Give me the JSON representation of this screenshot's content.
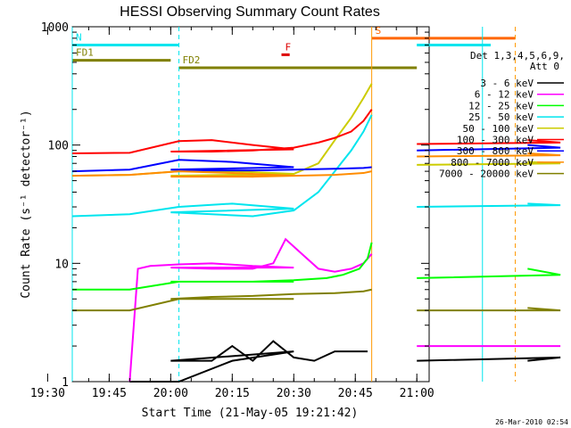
{
  "chart_data": {
    "type": "line",
    "title": "HESSI Observing Summary Count Rates",
    "xlabel": "Start Time (21-May-05 19:21:42)",
    "ylabel": "Count Rate (s⁻¹ detector⁻¹)",
    "yscale": "log",
    "ylim": [
      1,
      1000
    ],
    "xlim_minutes": [
      19.36,
      21.033
    ],
    "x_ticks": [
      "19:30",
      "19:45",
      "20:00",
      "20:15",
      "20:30",
      "20:45",
      "21:00"
    ],
    "y_ticks": [
      "1",
      "10",
      "100",
      "1000"
    ],
    "detector_note": "Det 1,3,4,5,6,9,",
    "attenuator_note": "Att 0",
    "timestamp": "26-Mar-2010 02:54",
    "legend_position": "right",
    "flags": [
      {
        "label": "N",
        "color": "#00e5ee",
        "y": 700,
        "segments": [
          [
            19.36,
            19.62
          ],
          [
            20.78,
            21.0
          ]
        ]
      },
      {
        "label": "S",
        "color": "#ff6600",
        "y": 800,
        "segments": [
          [
            20.49,
            20.84
          ]
        ]
      },
      {
        "label": "FD1",
        "color": "#808000",
        "y": 520,
        "segments": [
          [
            19.36,
            19.6
          ]
        ]
      },
      {
        "label": "FD2",
        "color": "#808000",
        "y": 450,
        "segments": [
          [
            19.62,
            21.0
          ]
        ]
      },
      {
        "label": "F",
        "color": "#dd0000",
        "y": 580,
        "segments": [
          [
            20.265,
            20.285
          ]
        ]
      }
    ],
    "vlines": [
      {
        "x": 19.62,
        "color": "#00e5ee",
        "dash": true
      },
      {
        "x": 20.49,
        "color": "#ff9900",
        "dash": false
      },
      {
        "x": 20.76,
        "color": "#00e5ee",
        "dash": false
      },
      {
        "x": 20.84,
        "color": "#ff9900",
        "dash": true
      },
      {
        "x": 20.99,
        "color": "#00e5ee",
        "dash": true
      },
      {
        "x": 19.365,
        "color": "#00e5ee",
        "dash": false
      }
    ],
    "series": [
      {
        "name": "3 - 6 keV",
        "color": "#000000",
        "x": [
          19.5,
          19.62,
          19.75,
          19.9,
          20.0,
          20.1,
          20.15,
          20.2,
          20.25,
          20.3,
          20.35,
          20.4,
          20.45,
          20.48,
          20.87,
          20.95,
          21.0
        ],
        "y": [
          1,
          1,
          1.5,
          1.8,
          1.5,
          1.5,
          2,
          1.5,
          2.2,
          1.6,
          1.5,
          1.8,
          1.8,
          1.8,
          1.5,
          1.6,
          1.5
        ]
      },
      {
        "name": "6 - 12 keV",
        "color": "#ff00ff",
        "x": [
          19.5,
          19.52,
          19.55,
          19.62,
          19.7,
          19.8,
          19.9,
          20.0,
          20.1,
          20.2,
          20.25,
          20.28,
          20.32,
          20.36,
          20.4,
          20.44,
          20.47,
          20.49,
          20.87,
          20.95,
          21.0
        ],
        "y": [
          1,
          9,
          9.5,
          9.8,
          10,
          9.5,
          9.2,
          9.2,
          9.0,
          9.0,
          10,
          16,
          12,
          9,
          8.5,
          9,
          10,
          12,
          2,
          2,
          2
        ]
      },
      {
        "name": "12 - 25 keV",
        "color": "#00ff00",
        "x": [
          19.36,
          19.5,
          19.62,
          19.75,
          19.9,
          20.0,
          20.1,
          20.2,
          20.3,
          20.38,
          20.42,
          20.46,
          20.48,
          20.49,
          20.87,
          20.95,
          21.0
        ],
        "y": [
          6,
          6,
          7,
          7,
          7,
          7,
          7,
          7,
          7.2,
          7.5,
          8,
          9,
          11,
          15,
          9,
          8,
          7.5
        ]
      },
      {
        "name": "25 - 50 keV",
        "color": "#00e5ee",
        "x": [
          19.36,
          19.5,
          19.62,
          19.75,
          19.9,
          20.0,
          20.1,
          20.2,
          20.3,
          20.36,
          20.4,
          20.44,
          20.47,
          20.49,
          20.87,
          20.95,
          21.0
        ],
        "y": [
          25,
          26,
          30,
          32,
          29,
          27,
          26,
          25,
          28,
          40,
          60,
          90,
          130,
          180,
          32,
          31,
          30
        ]
      },
      {
        "name": "50 - 100 keV",
        "color": "#cccc00",
        "x": [
          19.36,
          19.5,
          19.62,
          19.75,
          19.9,
          20.0,
          20.1,
          20.2,
          20.3,
          20.36,
          20.4,
          20.44,
          20.47,
          20.49,
          20.87,
          20.95,
          21.0
        ],
        "y": [
          55,
          56,
          60,
          60,
          57,
          55,
          55,
          54,
          57,
          70,
          110,
          170,
          250,
          330,
          72,
          70,
          68
        ]
      },
      {
        "name": "100 - 300 keV",
        "color": "#ff0000",
        "x": [
          19.36,
          19.5,
          19.62,
          19.7,
          19.8,
          19.9,
          20.0,
          20.1,
          20.2,
          20.3,
          20.36,
          20.4,
          20.44,
          20.47,
          20.49,
          20.87,
          20.95,
          21.0
        ],
        "y": [
          85,
          86,
          108,
          110,
          100,
          92,
          88,
          88,
          90,
          95,
          105,
          115,
          130,
          160,
          200,
          110,
          105,
          102
        ]
      },
      {
        "name": "300 - 800 keV",
        "color": "#0000ff",
        "x": [
          19.36,
          19.5,
          19.62,
          19.75,
          19.9,
          20.0,
          20.1,
          20.2,
          20.3,
          20.4,
          20.47,
          20.49,
          20.87,
          20.95,
          21.0
        ],
        "y": [
          60,
          62,
          75,
          72,
          65,
          62,
          61,
          61,
          62,
          63,
          64,
          65,
          100,
          95,
          90
        ]
      },
      {
        "name": "800 - 7000 keV",
        "color": "#ff8c00",
        "x": [
          19.36,
          19.5,
          19.62,
          19.75,
          19.9,
          20.0,
          20.1,
          20.2,
          20.3,
          20.4,
          20.47,
          20.49,
          20.87,
          20.95,
          21.0
        ],
        "y": [
          55,
          56,
          60,
          58,
          55,
          54,
          54,
          54,
          55,
          56,
          58,
          60,
          85,
          82,
          80
        ]
      },
      {
        "name": "7000 - 20000 keV",
        "color": "#808000",
        "x": [
          19.36,
          19.5,
          19.62,
          19.75,
          19.9,
          20.0,
          20.1,
          20.2,
          20.3,
          20.4,
          20.47,
          20.49,
          20.87,
          20.95,
          21.0
        ],
        "y": [
          4,
          4,
          5,
          5,
          5,
          5,
          5.2,
          5.3,
          5.5,
          5.6,
          5.8,
          6,
          4.2,
          4,
          4
        ]
      }
    ]
  }
}
